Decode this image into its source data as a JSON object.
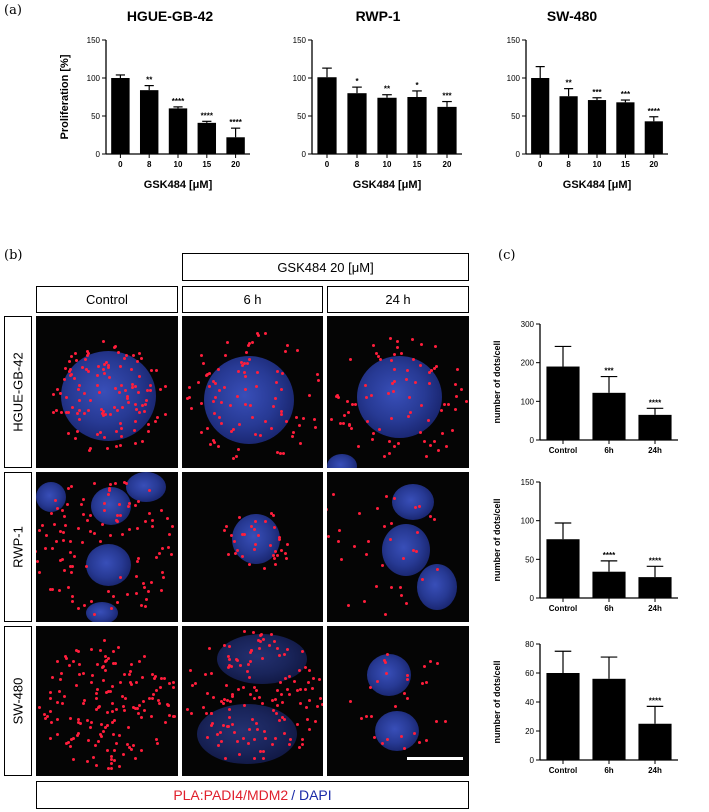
{
  "panel_labels": {
    "a": "(a)",
    "b": "(b)",
    "c": "(c)"
  },
  "panel_a": {
    "charts": [
      {
        "title": "HGUE-GB-42",
        "ylabel": "Proliferation [%]",
        "xlabel": "GSK484 [μM]",
        "categories": [
          "0",
          "8",
          "10",
          "15",
          "20"
        ],
        "values": [
          100,
          84,
          60,
          41,
          22
        ],
        "errors": [
          4,
          6,
          2,
          2,
          12
        ],
        "sig": [
          "",
          "**",
          "****",
          "****",
          "****"
        ],
        "yticks": [
          "0",
          "50",
          "100",
          "150"
        ],
        "ylim": [
          0,
          150
        ]
      },
      {
        "title": "RWP-1",
        "ylabel": "",
        "xlabel": "GSK484 [μM]",
        "categories": [
          "0",
          "8",
          "10",
          "15",
          "20"
        ],
        "values": [
          101,
          80,
          74,
          75,
          62
        ],
        "errors": [
          12,
          8,
          4,
          8,
          7
        ],
        "sig": [
          "",
          "*",
          "**",
          "*",
          "***"
        ],
        "yticks": [
          "0",
          "50",
          "100",
          "150"
        ],
        "ylim": [
          0,
          150
        ]
      },
      {
        "title": "SW-480",
        "ylabel": "",
        "xlabel": "GSK484 [μM]",
        "categories": [
          "0",
          "8",
          "10",
          "15",
          "20"
        ],
        "values": [
          100,
          76,
          71,
          68,
          43
        ],
        "errors": [
          15,
          10,
          3,
          3,
          6
        ],
        "sig": [
          "",
          "**",
          "***",
          "***",
          "****"
        ],
        "yticks": [
          "0",
          "50",
          "100",
          "150"
        ],
        "ylim": [
          0,
          150
        ]
      }
    ]
  },
  "panel_b": {
    "treatment_header": "GSK484 20 [μM]",
    "col_headers": [
      "Control",
      "6 h",
      "24 h"
    ],
    "row_labels": [
      "HGUE-GB-42",
      "RWP-1",
      "SW-480"
    ],
    "legend_red": "PLA:PADI4/MDM2",
    "legend_blue": "/ DAPI"
  },
  "panel_c": {
    "charts": [
      {
        "ylabel": "number of dots/cell",
        "categories": [
          "Control",
          "6h",
          "24h"
        ],
        "values": [
          190,
          122,
          65
        ],
        "errors": [
          52,
          42,
          17
        ],
        "sig": [
          "",
          "***",
          "****"
        ],
        "yticks": [
          "0",
          "100",
          "200",
          "300"
        ],
        "ylim": [
          0,
          300
        ]
      },
      {
        "ylabel": "number of dots/cell",
        "categories": [
          "Control",
          "6h",
          "24h"
        ],
        "values": [
          76,
          34,
          27
        ],
        "errors": [
          21,
          14,
          14
        ],
        "sig": [
          "",
          "****",
          "****"
        ],
        "yticks": [
          "0",
          "50",
          "100",
          "150"
        ],
        "ylim": [
          0,
          150
        ]
      },
      {
        "ylabel": "number of dots/cell",
        "categories": [
          "Control",
          "6h",
          "24h"
        ],
        "values": [
          60,
          56,
          25
        ],
        "errors": [
          15,
          15,
          12
        ],
        "sig": [
          "",
          "",
          "****"
        ],
        "yticks": [
          "0",
          "20",
          "40",
          "60",
          "80"
        ],
        "ylim": [
          0,
          80
        ]
      }
    ]
  },
  "chart_data": [
    {
      "type": "bar",
      "title": "HGUE-GB-42",
      "xlabel": "GSK484 [μM]",
      "ylabel": "Proliferation [%]",
      "categories": [
        "0",
        "8",
        "10",
        "15",
        "20"
      ],
      "values": [
        100,
        84,
        60,
        41,
        22
      ],
      "ylim": [
        0,
        150
      ]
    },
    {
      "type": "bar",
      "title": "RWP-1",
      "xlabel": "GSK484 [μM]",
      "categories": [
        "0",
        "8",
        "10",
        "15",
        "20"
      ],
      "values": [
        101,
        80,
        74,
        75,
        62
      ],
      "ylim": [
        0,
        150
      ]
    },
    {
      "type": "bar",
      "title": "SW-480",
      "xlabel": "GSK484 [μM]",
      "categories": [
        "0",
        "8",
        "10",
        "15",
        "20"
      ],
      "values": [
        100,
        76,
        71,
        68,
        43
      ],
      "ylim": [
        0,
        150
      ]
    },
    {
      "type": "bar",
      "ylabel": "number of dots/cell",
      "categories": [
        "Control",
        "6h",
        "24h"
      ],
      "values": [
        190,
        122,
        65
      ],
      "ylim": [
        0,
        300
      ]
    },
    {
      "type": "bar",
      "ylabel": "number of dots/cell",
      "categories": [
        "Control",
        "6h",
        "24h"
      ],
      "values": [
        76,
        34,
        27
      ],
      "ylim": [
        0,
        150
      ]
    },
    {
      "type": "bar",
      "ylabel": "number of dots/cell",
      "categories": [
        "Control",
        "6h",
        "24h"
      ],
      "values": [
        60,
        56,
        25
      ],
      "ylim": [
        0,
        80
      ]
    }
  ]
}
